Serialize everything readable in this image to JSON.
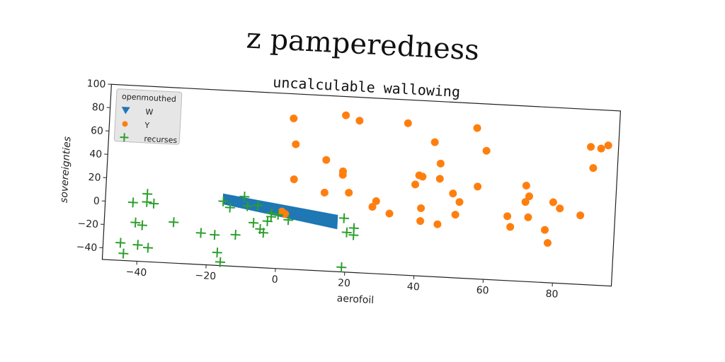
{
  "suptitle": "z pamperedness",
  "chart_data": {
    "type": "scatter",
    "title": "uncalculable wallowing",
    "xlabel": "aerofoil",
    "ylabel": "sovereignties",
    "xlim": [
      -50,
      97
    ],
    "ylim": [
      -50,
      100
    ],
    "xticks": [
      -40,
      -20,
      0,
      20,
      40,
      60,
      80
    ],
    "yticks": [
      -40,
      -20,
      0,
      20,
      40,
      60,
      80,
      100
    ],
    "grid": false,
    "legend": {
      "title": "openmouthed",
      "placement": "top-left"
    },
    "series": [
      {
        "name": "W",
        "marker": "triangle-down",
        "color": "#1f77b4",
        "band": {
          "x_start": -16,
          "x_end": 17,
          "y_top_start": 11,
          "y_top_end": -2,
          "y_bottom_start": 3,
          "y_bottom_end": -13
        }
      },
      {
        "name": "Y",
        "marker": "circle",
        "color": "#ff7f0e",
        "points": [
          [
            3,
            79
          ],
          [
            4,
            57
          ],
          [
            4,
            27
          ],
          [
            13,
            45
          ],
          [
            13,
            17
          ],
          [
            18,
            84
          ],
          [
            18,
            36
          ],
          [
            18,
            33
          ],
          [
            20,
            18
          ],
          [
            22,
            80
          ],
          [
            27,
            7
          ],
          [
            28,
            12
          ],
          [
            32,
            2
          ],
          [
            36,
            80
          ],
          [
            39,
            28
          ],
          [
            40,
            36
          ],
          [
            41,
            35
          ],
          [
            41,
            8
          ],
          [
            41,
            -3
          ],
          [
            44,
            65
          ],
          [
            46,
            47
          ],
          [
            46,
            34
          ],
          [
            46,
            -5
          ],
          [
            50,
            22
          ],
          [
            51,
            4
          ],
          [
            52,
            15
          ],
          [
            56,
            79
          ],
          [
            57,
            29
          ],
          [
            59,
            60
          ],
          [
            66,
            5
          ],
          [
            67,
            -4
          ],
          [
            71,
            32
          ],
          [
            71,
            18
          ],
          [
            72,
            23
          ],
          [
            72,
            5
          ],
          [
            77,
            -5
          ],
          [
            78,
            -16
          ],
          [
            79,
            19
          ],
          [
            81,
            14
          ],
          [
            87,
            9
          ],
          [
            89,
            68
          ],
          [
            90,
            50
          ],
          [
            92,
            67
          ],
          [
            94,
            70
          ],
          [
            1,
            -1
          ],
          [
            2,
            -3
          ]
        ]
      },
      {
        "name": "recurses",
        "marker": "plus",
        "color": "#2ca02c",
        "points": [
          [
            -45,
            -35
          ],
          [
            -44,
            -44
          ],
          [
            -42,
            0
          ],
          [
            -41,
            -17
          ],
          [
            -40,
            -36
          ],
          [
            -39,
            -19
          ],
          [
            -38,
            8
          ],
          [
            -38,
            1
          ],
          [
            -37,
            -38
          ],
          [
            -36,
            0
          ],
          [
            -30,
            -15
          ],
          [
            -22,
            -23
          ],
          [
            -18,
            -24
          ],
          [
            -17,
            -39
          ],
          [
            -16,
            -47
          ],
          [
            -16,
            5
          ],
          [
            -14,
            0
          ],
          [
            -12,
            -23
          ],
          [
            -10,
            10
          ],
          [
            -9,
            2
          ],
          [
            -7,
            -12
          ],
          [
            -6,
            3
          ],
          [
            -5,
            -17
          ],
          [
            -4,
            -20
          ],
          [
            -3,
            -10
          ],
          [
            -2,
            -6
          ],
          [
            0,
            -4
          ],
          [
            19,
            -4
          ],
          [
            19,
            -46
          ],
          [
            20,
            -16
          ],
          [
            22,
            -12
          ],
          [
            22,
            -18
          ],
          [
            -2,
            -3
          ],
          [
            3,
            -8
          ]
        ]
      }
    ]
  }
}
